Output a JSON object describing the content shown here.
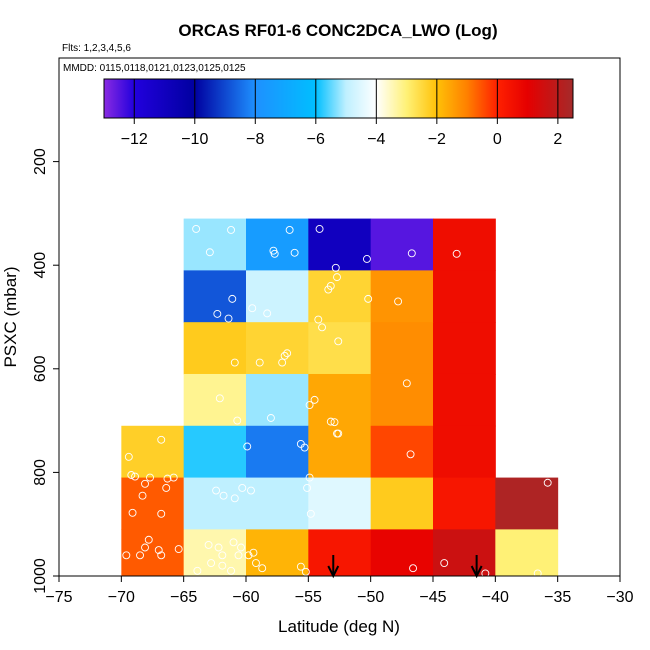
{
  "chart_data": {
    "type": "heatmap",
    "title": "ORCAS RF01-6 CONC2DCA_LWO (Log)",
    "notes": [
      "Flts: 1,2,3,4,5,6",
      "MMDD: 0115,0118,0121,0123,0125,0125"
    ],
    "xlabel": "Latitude (deg N)",
    "ylabel": "PSXC (mbar)",
    "xlim": [
      -75,
      -30
    ],
    "ylim": [
      1000,
      0
    ],
    "x_ticks": [
      -75,
      -70,
      -65,
      -60,
      -55,
      -50,
      -45,
      -40,
      -35,
      -30
    ],
    "y_ticks": [
      200,
      400,
      600,
      800,
      1000
    ],
    "colorbar": {
      "range": [
        -13,
        2.5
      ],
      "ticks": [
        -12,
        -10,
        -8,
        -6,
        -4,
        -2,
        0,
        2
      ],
      "stops": [
        {
          "v": -13,
          "c": "#8a2be2"
        },
        {
          "v": -12,
          "c": "#2200dd"
        },
        {
          "v": -10,
          "c": "#0000a0"
        },
        {
          "v": -8,
          "c": "#1e90ff"
        },
        {
          "v": -6,
          "c": "#00bfff"
        },
        {
          "v": -5,
          "c": "#bff0ff"
        },
        {
          "v": -4,
          "c": "#ffffff"
        },
        {
          "v": -3,
          "c": "#fff176"
        },
        {
          "v": -2,
          "c": "#ffc107"
        },
        {
          "v": -1,
          "c": "#ff8000"
        },
        {
          "v": 0,
          "c": "#ff2000"
        },
        {
          "v": 1,
          "c": "#e50000"
        },
        {
          "v": 2.5,
          "c": "#a52a2a"
        }
      ]
    },
    "cells": [
      {
        "lat": [
          -65,
          -60
        ],
        "p": [
          310,
          410
        ],
        "v": -5.2
      },
      {
        "lat": [
          -60,
          -55
        ],
        "p": [
          310,
          410
        ],
        "v": -7.5
      },
      {
        "lat": [
          -55,
          -50
        ],
        "p": [
          310,
          410
        ],
        "v": -11
      },
      {
        "lat": [
          -50,
          -45
        ],
        "p": [
          310,
          410
        ],
        "v": -12.5
      },
      {
        "lat": [
          -45,
          -40
        ],
        "p": [
          310,
          410
        ],
        "v": 0.6
      },
      {
        "lat": [
          -65,
          -60
        ],
        "p": [
          410,
          510
        ],
        "v": -8.8
      },
      {
        "lat": [
          -60,
          -55
        ],
        "p": [
          410,
          510
        ],
        "v": -4.8
      },
      {
        "lat": [
          -55,
          -50
        ],
        "p": [
          410,
          510
        ],
        "v": -2.4
      },
      {
        "lat": [
          -50,
          -45
        ],
        "p": [
          410,
          510
        ],
        "v": -1.3
      },
      {
        "lat": [
          -45,
          -40
        ],
        "p": [
          410,
          510
        ],
        "v": 0.6
      },
      {
        "lat": [
          -65,
          -60
        ],
        "p": [
          510,
          610
        ],
        "v": -2.2
      },
      {
        "lat": [
          -60,
          -55
        ],
        "p": [
          510,
          610
        ],
        "v": -2.4
      },
      {
        "lat": [
          -55,
          -50
        ],
        "p": [
          510,
          610
        ],
        "v": -2.6
      },
      {
        "lat": [
          -50,
          -45
        ],
        "p": [
          510,
          610
        ],
        "v": -1.2
      },
      {
        "lat": [
          -45,
          -40
        ],
        "p": [
          510,
          610
        ],
        "v": 0.6
      },
      {
        "lat": [
          -65,
          -60
        ],
        "p": [
          610,
          710
        ],
        "v": -3.2
      },
      {
        "lat": [
          -60,
          -55
        ],
        "p": [
          610,
          710
        ],
        "v": -5.2
      },
      {
        "lat": [
          -55,
          -50
        ],
        "p": [
          610,
          710
        ],
        "v": -1.6
      },
      {
        "lat": [
          -50,
          -45
        ],
        "p": [
          610,
          710
        ],
        "v": -1.2
      },
      {
        "lat": [
          -45,
          -40
        ],
        "p": [
          610,
          710
        ],
        "v": 0.6
      },
      {
        "lat": [
          -70,
          -65
        ],
        "p": [
          710,
          810
        ],
        "v": -2.3
      },
      {
        "lat": [
          -65,
          -60
        ],
        "p": [
          710,
          810
        ],
        "v": -5.8
      },
      {
        "lat": [
          -60,
          -55
        ],
        "p": [
          710,
          810
        ],
        "v": -8.3
      },
      {
        "lat": [
          -55,
          -50
        ],
        "p": [
          710,
          810
        ],
        "v": -1.6
      },
      {
        "lat": [
          -50,
          -45
        ],
        "p": [
          710,
          810
        ],
        "v": -0.4
      },
      {
        "lat": [
          -45,
          -40
        ],
        "p": [
          710,
          810
        ],
        "v": 0.6
      },
      {
        "lat": [
          -70,
          -65
        ],
        "p": [
          810,
          910
        ],
        "v": -0.6
      },
      {
        "lat": [
          -65,
          -60
        ],
        "p": [
          810,
          910
        ],
        "v": -5.0
      },
      {
        "lat": [
          -60,
          -55
        ],
        "p": [
          810,
          910
        ],
        "v": -5.0
      },
      {
        "lat": [
          -55,
          -50
        ],
        "p": [
          810,
          910
        ],
        "v": -4.5
      },
      {
        "lat": [
          -50,
          -45
        ],
        "p": [
          810,
          910
        ],
        "v": -2.2
      },
      {
        "lat": [
          -45,
          -40
        ],
        "p": [
          810,
          910
        ],
        "v": 0.3
      },
      {
        "lat": [
          -40,
          -35
        ],
        "p": [
          810,
          910
        ],
        "v": 2.3
      },
      {
        "lat": [
          -70,
          -65
        ],
        "p": [
          910,
          1010
        ],
        "v": -0.6
      },
      {
        "lat": [
          -65,
          -60
        ],
        "p": [
          910,
          1010
        ],
        "v": -3.4
      },
      {
        "lat": [
          -60,
          -55
        ],
        "p": [
          910,
          1010
        ],
        "v": -1.8
      },
      {
        "lat": [
          -55,
          -50
        ],
        "p": [
          910,
          1010
        ],
        "v": 0.3
      },
      {
        "lat": [
          -50,
          -45
        ],
        "p": [
          910,
          1010
        ],
        "v": 0.9
      },
      {
        "lat": [
          -45,
          -40
        ],
        "p": [
          910,
          1010
        ],
        "v": 1.6
      },
      {
        "lat": [
          -40,
          -35
        ],
        "p": [
          910,
          1010
        ],
        "v": -3.0
      }
    ],
    "points": [
      [
        -64,
        330
      ],
      [
        -62.9,
        375
      ],
      [
        -61.2,
        332
      ],
      [
        -57.7,
        378
      ],
      [
        -57.8,
        372
      ],
      [
        -56.5,
        332
      ],
      [
        -56.1,
        376
      ],
      [
        -54.1,
        330
      ],
      [
        -52.8,
        405
      ],
      [
        -50.3,
        388
      ],
      [
        -46.7,
        377
      ],
      [
        -43.1,
        378
      ],
      [
        -53.4,
        447
      ],
      [
        -53.2,
        440
      ],
      [
        -52.7,
        423
      ],
      [
        -50.2,
        465
      ],
      [
        -47.8,
        470
      ],
      [
        -61.1,
        465
      ],
      [
        -62.3,
        494
      ],
      [
        -61.4,
        503
      ],
      [
        -59.5,
        483
      ],
      [
        -58.3,
        493
      ],
      [
        -54.2,
        505
      ],
      [
        -53.9,
        520
      ],
      [
        -52.6,
        547
      ],
      [
        -56.7,
        570
      ],
      [
        -56.9,
        575
      ],
      [
        -57.1,
        588
      ],
      [
        -58.9,
        588
      ],
      [
        -60.9,
        588
      ],
      [
        -62.1,
        657
      ],
      [
        -60.7,
        700
      ],
      [
        -58,
        695
      ],
      [
        -54.5,
        660
      ],
      [
        -54.9,
        670
      ],
      [
        -53.2,
        702
      ],
      [
        -52.9,
        703
      ],
      [
        -52.7,
        725
      ],
      [
        -52.6,
        725
      ],
      [
        -47.1,
        628
      ],
      [
        -66.8,
        737
      ],
      [
        -69.4,
        770
      ],
      [
        -69.2,
        805
      ],
      [
        -68.9,
        808
      ],
      [
        -67.7,
        810
      ],
      [
        -66.3,
        812
      ],
      [
        -65.8,
        810
      ],
      [
        -68.1,
        822
      ],
      [
        -66.4,
        830
      ],
      [
        -68.3,
        845
      ],
      [
        -69.1,
        878
      ],
      [
        -66.8,
        880
      ],
      [
        -67.8,
        930
      ],
      [
        -68.1,
        945
      ],
      [
        -67,
        950
      ],
      [
        -66.8,
        960
      ],
      [
        -68.5,
        960
      ],
      [
        -69.6,
        960
      ],
      [
        -65.4,
        948
      ],
      [
        -63,
        940
      ],
      [
        -62.2,
        945
      ],
      [
        -61,
        935
      ],
      [
        -60.4,
        945
      ],
      [
        -59.8,
        960
      ],
      [
        -59.4,
        955
      ],
      [
        -61.9,
        960
      ],
      [
        -60.6,
        960
      ],
      [
        -62.8,
        975
      ],
      [
        -61.9,
        980
      ],
      [
        -61.2,
        990
      ],
      [
        -63.9,
        990
      ],
      [
        -59.2,
        975
      ],
      [
        -58.7,
        985
      ],
      [
        -55.2,
        992
      ],
      [
        -55.6,
        982
      ],
      [
        -62.4,
        835
      ],
      [
        -61.8,
        845
      ],
      [
        -60.9,
        850
      ],
      [
        -59.6,
        835
      ],
      [
        -60.3,
        830
      ],
      [
        -59.9,
        750
      ],
      [
        -55.6,
        745
      ],
      [
        -55.3,
        752
      ],
      [
        -54.9,
        810
      ],
      [
        -55.1,
        830
      ],
      [
        -54.8,
        880
      ],
      [
        -46.8,
        765
      ],
      [
        -44.1,
        975
      ],
      [
        -40.8,
        995
      ],
      [
        -36.6,
        995
      ],
      [
        -35.8,
        820
      ],
      [
        -46.6,
        985
      ]
    ],
    "arrows": [
      -53,
      -41.5
    ]
  }
}
